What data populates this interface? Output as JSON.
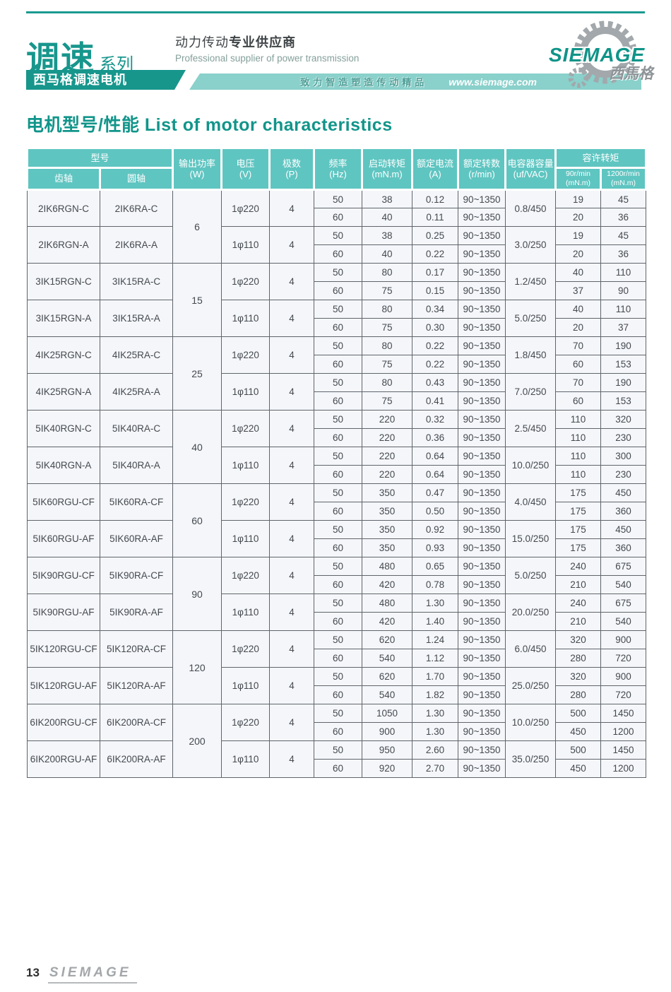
{
  "colors": {
    "teal_dark": "#17968c",
    "teal_header": "#5fc5c1",
    "teal_strip": "#8ad0cb",
    "title_text": "#11958a",
    "body_text": "#45494e",
    "cell_bg": "#f4f6fa",
    "cell_border": "#60656b",
    "logo_gray": "#a2a8ab"
  },
  "header": {
    "series_big": "调速",
    "series_small": "系列",
    "sub_banner": "西马格调速电机",
    "slogan_cn_normal": "动力传动",
    "slogan_cn_bold": "专业供应商",
    "slogan_en": "Professional supplier of power transmission",
    "strip_slogan": "致力智造塑造传动精品",
    "website": "www.siemage.com",
    "logo_text": "SIEMAGE",
    "logo_cn": "西馬格",
    "gear_icon": "gear-icon"
  },
  "page_title": "电机型号/性能 List of motor characteristics",
  "table": {
    "columns": {
      "model": {
        "label": "型号"
      },
      "gear": {
        "label": "齿轴"
      },
      "round": {
        "label": "圆轴"
      },
      "power": {
        "label": "输出功率",
        "unit": "(W)"
      },
      "voltage": {
        "label": "电压",
        "unit": "(V)"
      },
      "poles": {
        "label": "极数",
        "unit": "(P)"
      },
      "freq": {
        "label": "频率",
        "unit": "(Hz)"
      },
      "start_torque": {
        "label": "启动转矩",
        "unit": "(mN.m)"
      },
      "current": {
        "label": "额定电流",
        "unit": "(A)"
      },
      "speed": {
        "label": "额定转数",
        "unit": "(r/min)"
      },
      "capacitor": {
        "label": "电容器容量",
        "unit": "(uf/VAC)"
      },
      "allow_torque": {
        "label": "容许转矩"
      },
      "allow_90": {
        "label": "90r/min",
        "unit": "(mN.m)"
      },
      "allow_1200": {
        "label": "1200r/min",
        "unit": "(mN.m)"
      }
    },
    "power_groups": [
      {
        "power": "6",
        "models": [
          {
            "gear": "2IK6RGN-C",
            "round": "2IK6RA-C",
            "voltage": "1φ220",
            "poles": "4",
            "capacitor": "0.8/450",
            "rows": [
              {
                "freq": "50",
                "start": "38",
                "current": "0.12",
                "speed": "90~1350",
                "t90": "19",
                "t1200": "45"
              },
              {
                "freq": "60",
                "start": "40",
                "current": "0.11",
                "speed": "90~1350",
                "t90": "20",
                "t1200": "36"
              }
            ]
          },
          {
            "gear": "2IK6RGN-A",
            "round": "2IK6RA-A",
            "voltage": "1φ110",
            "poles": "4",
            "capacitor": "3.0/250",
            "rows": [
              {
                "freq": "50",
                "start": "38",
                "current": "0.25",
                "speed": "90~1350",
                "t90": "19",
                "t1200": "45"
              },
              {
                "freq": "60",
                "start": "40",
                "current": "0.22",
                "speed": "90~1350",
                "t90": "20",
                "t1200": "36"
              }
            ]
          }
        ]
      },
      {
        "power": "15",
        "models": [
          {
            "gear": "3IK15RGN-C",
            "round": "3IK15RA-C",
            "voltage": "1φ220",
            "poles": "4",
            "capacitor": "1.2/450",
            "rows": [
              {
                "freq": "50",
                "start": "80",
                "current": "0.17",
                "speed": "90~1350",
                "t90": "40",
                "t1200": "110"
              },
              {
                "freq": "60",
                "start": "75",
                "current": "0.15",
                "speed": "90~1350",
                "t90": "37",
                "t1200": "90"
              }
            ]
          },
          {
            "gear": "3IK15RGN-A",
            "round": "3IK15RA-A",
            "voltage": "1φ110",
            "poles": "4",
            "capacitor": "5.0/250",
            "rows": [
              {
                "freq": "50",
                "start": "80",
                "current": "0.34",
                "speed": "90~1350",
                "t90": "40",
                "t1200": "110"
              },
              {
                "freq": "60",
                "start": "75",
                "current": "0.30",
                "speed": "90~1350",
                "t90": "20",
                "t1200": "37"
              }
            ]
          }
        ]
      },
      {
        "power": "25",
        "models": [
          {
            "gear": "4IK25RGN-C",
            "round": "4IK25RA-C",
            "voltage": "1φ220",
            "poles": "4",
            "capacitor": "1.8/450",
            "rows": [
              {
                "freq": "50",
                "start": "80",
                "current": "0.22",
                "speed": "90~1350",
                "t90": "70",
                "t1200": "190"
              },
              {
                "freq": "60",
                "start": "75",
                "current": "0.22",
                "speed": "90~1350",
                "t90": "60",
                "t1200": "153"
              }
            ]
          },
          {
            "gear": "4IK25RGN-A",
            "round": "4IK25RA-A",
            "voltage": "1φ110",
            "poles": "4",
            "capacitor": "7.0/250",
            "rows": [
              {
                "freq": "50",
                "start": "80",
                "current": "0.43",
                "speed": "90~1350",
                "t90": "70",
                "t1200": "190"
              },
              {
                "freq": "60",
                "start": "75",
                "current": "0.41",
                "speed": "90~1350",
                "t90": "60",
                "t1200": "153"
              }
            ]
          }
        ]
      },
      {
        "power": "40",
        "models": [
          {
            "gear": "5IK40RGN-C",
            "round": "5IK40RA-C",
            "voltage": "1φ220",
            "poles": "4",
            "capacitor": "2.5/450",
            "rows": [
              {
                "freq": "50",
                "start": "220",
                "current": "0.32",
                "speed": "90~1350",
                "t90": "110",
                "t1200": "320"
              },
              {
                "freq": "60",
                "start": "220",
                "current": "0.36",
                "speed": "90~1350",
                "t90": "110",
                "t1200": "230"
              }
            ]
          },
          {
            "gear": "5IK40RGN-A",
            "round": "5IK40RA-A",
            "voltage": "1φ110",
            "poles": "4",
            "capacitor": "10.0/250",
            "rows": [
              {
                "freq": "50",
                "start": "220",
                "current": "0.64",
                "speed": "90~1350",
                "t90": "110",
                "t1200": "300"
              },
              {
                "freq": "60",
                "start": "220",
                "current": "0.64",
                "speed": "90~1350",
                "t90": "110",
                "t1200": "230"
              }
            ]
          }
        ]
      },
      {
        "power": "60",
        "models": [
          {
            "gear": "5IK60RGU-CF",
            "round": "5IK60RA-CF",
            "voltage": "1φ220",
            "poles": "4",
            "capacitor": "4.0/450",
            "rows": [
              {
                "freq": "50",
                "start": "350",
                "current": "0.47",
                "speed": "90~1350",
                "t90": "175",
                "t1200": "450"
              },
              {
                "freq": "60",
                "start": "350",
                "current": "0.50",
                "speed": "90~1350",
                "t90": "175",
                "t1200": "360"
              }
            ]
          },
          {
            "gear": "5IK60RGU-AF",
            "round": "5IK60RA-AF",
            "voltage": "1φ110",
            "poles": "4",
            "capacitor": "15.0/250",
            "rows": [
              {
                "freq": "50",
                "start": "350",
                "current": "0.92",
                "speed": "90~1350",
                "t90": "175",
                "t1200": "450"
              },
              {
                "freq": "60",
                "start": "350",
                "current": "0.93",
                "speed": "90~1350",
                "t90": "175",
                "t1200": "360"
              }
            ]
          }
        ]
      },
      {
        "power": "90",
        "models": [
          {
            "gear": "5IK90RGU-CF",
            "round": "5IK90RA-CF",
            "voltage": "1φ220",
            "poles": "4",
            "capacitor": "5.0/250",
            "rows": [
              {
                "freq": "50",
                "start": "480",
                "current": "0.65",
                "speed": "90~1350",
                "t90": "240",
                "t1200": "675"
              },
              {
                "freq": "60",
                "start": "420",
                "current": "0.78",
                "speed": "90~1350",
                "t90": "210",
                "t1200": "540"
              }
            ]
          },
          {
            "gear": "5IK90RGU-AF",
            "round": "5IK90RA-AF",
            "voltage": "1φ110",
            "poles": "4",
            "capacitor": "20.0/250",
            "rows": [
              {
                "freq": "50",
                "start": "480",
                "current": "1.30",
                "speed": "90~1350",
                "t90": "240",
                "t1200": "675"
              },
              {
                "freq": "60",
                "start": "420",
                "current": "1.40",
                "speed": "90~1350",
                "t90": "210",
                "t1200": "540"
              }
            ]
          }
        ]
      },
      {
        "power": "120",
        "models": [
          {
            "gear": "5IK120RGU-CF",
            "round": "5IK120RA-CF",
            "voltage": "1φ220",
            "poles": "4",
            "capacitor": "6.0/450",
            "rows": [
              {
                "freq": "50",
                "start": "620",
                "current": "1.24",
                "speed": "90~1350",
                "t90": "320",
                "t1200": "900"
              },
              {
                "freq": "60",
                "start": "540",
                "current": "1.12",
                "speed": "90~1350",
                "t90": "280",
                "t1200": "720"
              }
            ]
          },
          {
            "gear": "5IK120RGU-AF",
            "round": "5IK120RA-AF",
            "voltage": "1φ110",
            "poles": "4",
            "capacitor": "25.0/250",
            "rows": [
              {
                "freq": "50",
                "start": "620",
                "current": "1.70",
                "speed": "90~1350",
                "t90": "320",
                "t1200": "900"
              },
              {
                "freq": "60",
                "start": "540",
                "current": "1.82",
                "speed": "90~1350",
                "t90": "280",
                "t1200": "720"
              }
            ]
          }
        ]
      },
      {
        "power": "200",
        "models": [
          {
            "gear": "6IK200RGU-CF",
            "round": "6IK200RA-CF",
            "voltage": "1φ220",
            "poles": "4",
            "capacitor": "10.0/250",
            "rows": [
              {
                "freq": "50",
                "start": "1050",
                "current": "1.30",
                "speed": "90~1350",
                "t90": "500",
                "t1200": "1450"
              },
              {
                "freq": "60",
                "start": "900",
                "current": "1.30",
                "speed": "90~1350",
                "t90": "450",
                "t1200": "1200"
              }
            ]
          },
          {
            "gear": "6IK200RGU-AF",
            "round": "6IK200RA-AF",
            "voltage": "1φ110",
            "poles": "4",
            "capacitor": "35.0/250",
            "rows": [
              {
                "freq": "50",
                "start": "950",
                "current": "2.60",
                "speed": "90~1350",
                "t90": "500",
                "t1200": "1450"
              },
              {
                "freq": "60",
                "start": "920",
                "current": "2.70",
                "speed": "90~1350",
                "t90": "450",
                "t1200": "1200"
              }
            ]
          }
        ]
      }
    ]
  },
  "footer": {
    "page_number": "13",
    "brand": "SIEMAGE"
  }
}
